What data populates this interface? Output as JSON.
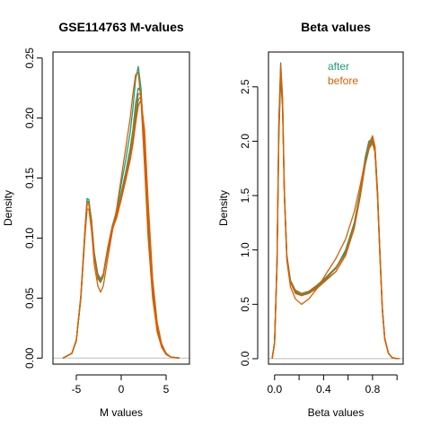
{
  "colors": {
    "after": "#1b9e77",
    "before": "#d95f02",
    "axis": "#000000",
    "baseline": "#bebebe"
  },
  "chart_data": [
    {
      "type": "line",
      "title": "GSE114763 M-values",
      "xlabel": "M values",
      "ylabel": "Density",
      "xlim": [
        -7.6,
        7.6
      ],
      "ylim": [
        -0.005,
        0.255
      ],
      "xticks": [
        -5,
        0,
        5
      ],
      "xtick_labels": [
        "-5",
        "0",
        "5"
      ],
      "yticks": [
        0.0,
        0.05,
        0.1,
        0.15,
        0.2,
        0.25
      ],
      "ytick_labels": [
        "0.00",
        "0.05",
        "0.10",
        "0.15",
        "0.20",
        "0.25"
      ],
      "grid": false,
      "legend": null,
      "series": [
        {
          "group": "after",
          "x": [
            -6.5,
            -5.5,
            -5.0,
            -4.5,
            -4.0,
            -3.8,
            -3.6,
            -3.3,
            -3.0,
            -2.6,
            -2.3,
            -2.0,
            -1.5,
            -1.0,
            -0.5,
            0.0,
            0.5,
            1.0,
            1.3,
            1.6,
            1.9,
            2.2,
            2.6,
            3.0,
            3.5,
            4.0,
            4.5,
            5.0,
            5.5,
            6.5
          ],
          "y": [
            0.0,
            0.004,
            0.015,
            0.05,
            0.11,
            0.13,
            0.13,
            0.115,
            0.088,
            0.07,
            0.066,
            0.07,
            0.092,
            0.11,
            0.123,
            0.145,
            0.165,
            0.188,
            0.208,
            0.232,
            0.243,
            0.225,
            0.17,
            0.11,
            0.055,
            0.025,
            0.01,
            0.004,
            0.001,
            0.0
          ]
        },
        {
          "group": "after",
          "x": [
            -6.5,
            -5.5,
            -5.0,
            -4.5,
            -4.0,
            -3.8,
            -3.6,
            -3.3,
            -3.0,
            -2.6,
            -2.3,
            -2.0,
            -1.5,
            -1.0,
            -0.5,
            0.0,
            0.5,
            1.0,
            1.3,
            1.6,
            1.9,
            2.2,
            2.6,
            3.0,
            3.5,
            4.0,
            4.5,
            5.0,
            5.5,
            6.5
          ],
          "y": [
            0.0,
            0.004,
            0.015,
            0.052,
            0.112,
            0.133,
            0.132,
            0.113,
            0.085,
            0.066,
            0.063,
            0.068,
            0.09,
            0.108,
            0.12,
            0.138,
            0.155,
            0.175,
            0.19,
            0.212,
            0.225,
            0.222,
            0.178,
            0.118,
            0.06,
            0.027,
            0.011,
            0.004,
            0.001,
            0.0
          ]
        },
        {
          "group": "after",
          "x": [
            -6.5,
            -5.5,
            -5.0,
            -4.5,
            -4.0,
            -3.8,
            -3.6,
            -3.3,
            -3.0,
            -2.6,
            -2.3,
            -2.0,
            -1.5,
            -1.0,
            -0.5,
            0.0,
            0.5,
            1.0,
            1.3,
            1.6,
            1.9,
            2.2,
            2.6,
            3.0,
            3.5,
            4.0,
            4.5,
            5.0,
            5.5,
            6.5
          ],
          "y": [
            0.0,
            0.004,
            0.014,
            0.05,
            0.11,
            0.131,
            0.13,
            0.112,
            0.086,
            0.068,
            0.065,
            0.069,
            0.089,
            0.107,
            0.118,
            0.134,
            0.15,
            0.168,
            0.182,
            0.2,
            0.215,
            0.218,
            0.185,
            0.125,
            0.063,
            0.028,
            0.011,
            0.004,
            0.001,
            0.0
          ]
        },
        {
          "group": "before",
          "x": [
            -6.5,
            -5.5,
            -5.0,
            -4.5,
            -4.0,
            -3.8,
            -3.6,
            -3.3,
            -3.0,
            -2.6,
            -2.3,
            -2.0,
            -1.5,
            -1.0,
            -0.5,
            0.0,
            0.5,
            1.0,
            1.3,
            1.6,
            1.9,
            2.2,
            2.6,
            3.0,
            3.5,
            4.0,
            4.5,
            5.0,
            5.5,
            6.5
          ],
          "y": [
            0.0,
            0.004,
            0.015,
            0.05,
            0.108,
            0.128,
            0.128,
            0.112,
            0.086,
            0.066,
            0.064,
            0.07,
            0.092,
            0.11,
            0.12,
            0.135,
            0.152,
            0.17,
            0.186,
            0.205,
            0.22,
            0.22,
            0.18,
            0.12,
            0.06,
            0.027,
            0.011,
            0.004,
            0.001,
            0.0
          ]
        },
        {
          "group": "before",
          "x": [
            -6.5,
            -5.5,
            -5.0,
            -4.5,
            -4.0,
            -3.8,
            -3.6,
            -3.3,
            -3.0,
            -2.6,
            -2.3,
            -2.0,
            -1.5,
            -1.0,
            -0.5,
            0.0,
            0.5,
            1.0,
            1.3,
            1.6,
            1.9,
            2.2,
            2.6,
            3.0,
            3.5,
            4.0,
            4.5,
            5.0,
            5.5,
            6.5
          ],
          "y": [
            0.0,
            0.004,
            0.015,
            0.05,
            0.105,
            0.124,
            0.124,
            0.106,
            0.078,
            0.06,
            0.055,
            0.06,
            0.083,
            0.105,
            0.125,
            0.15,
            0.175,
            0.2,
            0.22,
            0.236,
            0.238,
            0.215,
            0.16,
            0.1,
            0.05,
            0.022,
            0.009,
            0.003,
            0.001,
            0.0
          ]
        },
        {
          "group": "before",
          "x": [
            -6.5,
            -5.5,
            -5.0,
            -4.5,
            -4.0,
            -3.8,
            -3.6,
            -3.3,
            -3.0,
            -2.6,
            -2.3,
            -2.0,
            -1.5,
            -1.0,
            -0.5,
            0.0,
            0.5,
            1.0,
            1.3,
            1.6,
            1.9,
            2.2,
            2.6,
            3.0,
            3.5,
            4.0,
            4.5,
            5.0,
            5.5,
            6.5
          ],
          "y": [
            0.0,
            0.004,
            0.015,
            0.051,
            0.11,
            0.13,
            0.129,
            0.111,
            0.085,
            0.067,
            0.064,
            0.069,
            0.09,
            0.107,
            0.117,
            0.132,
            0.148,
            0.165,
            0.178,
            0.195,
            0.21,
            0.215,
            0.19,
            0.13,
            0.066,
            0.03,
            0.012,
            0.004,
            0.001,
            0.0
          ]
        }
      ]
    },
    {
      "type": "line",
      "title": "Beta values",
      "xlabel": "Beta values",
      "ylabel": "Density",
      "xlim": [
        -0.05,
        1.05
      ],
      "ylim": [
        -0.05,
        2.82
      ],
      "xticks": [
        0.0,
        0.4,
        0.8
      ],
      "xtick_labels": [
        "0.0",
        "0.4",
        "0.8"
      ],
      "xticks_minor": [
        0.2,
        0.6,
        1.0
      ],
      "yticks": [
        0.0,
        0.5,
        1.0,
        1.5,
        2.0,
        2.5
      ],
      "ytick_labels": [
        "0.0",
        "0.5",
        "1.0",
        "1.5",
        "2.0",
        "2.5"
      ],
      "grid": false,
      "legend": {
        "position": "top-right",
        "entries": [
          {
            "label": "after",
            "group": "after"
          },
          {
            "label": "before",
            "group": "before"
          }
        ]
      },
      "series": [
        {
          "group": "after",
          "x": [
            -0.02,
            0.0,
            0.02,
            0.035,
            0.05,
            0.065,
            0.08,
            0.1,
            0.13,
            0.17,
            0.22,
            0.28,
            0.35,
            0.42,
            0.5,
            0.58,
            0.65,
            0.7,
            0.74,
            0.77,
            0.8,
            0.82,
            0.84,
            0.86,
            0.88,
            0.9,
            0.93,
            0.96,
            1.0,
            1.02
          ],
          "y": [
            0.0,
            0.15,
            0.9,
            2.2,
            2.72,
            2.4,
            1.55,
            0.95,
            0.72,
            0.63,
            0.6,
            0.62,
            0.67,
            0.73,
            0.8,
            0.95,
            1.2,
            1.5,
            1.8,
            1.95,
            2.0,
            1.9,
            1.5,
            0.95,
            0.45,
            0.18,
            0.05,
            0.01,
            0.0,
            0.0
          ]
        },
        {
          "group": "after",
          "x": [
            -0.02,
            0.0,
            0.02,
            0.035,
            0.05,
            0.065,
            0.08,
            0.1,
            0.13,
            0.17,
            0.22,
            0.28,
            0.35,
            0.42,
            0.5,
            0.58,
            0.65,
            0.7,
            0.74,
            0.77,
            0.8,
            0.82,
            0.84,
            0.86,
            0.88,
            0.9,
            0.93,
            0.96,
            1.0,
            1.02
          ],
          "y": [
            0.0,
            0.14,
            0.85,
            2.05,
            2.58,
            2.3,
            1.5,
            0.92,
            0.7,
            0.61,
            0.58,
            0.61,
            0.66,
            0.74,
            0.83,
            1.0,
            1.25,
            1.55,
            1.85,
            2.0,
            2.02,
            1.92,
            1.5,
            0.95,
            0.45,
            0.18,
            0.05,
            0.01,
            0.0,
            0.0
          ]
        },
        {
          "group": "after",
          "x": [
            -0.02,
            0.0,
            0.02,
            0.035,
            0.05,
            0.065,
            0.08,
            0.1,
            0.13,
            0.17,
            0.22,
            0.28,
            0.35,
            0.42,
            0.5,
            0.58,
            0.65,
            0.7,
            0.74,
            0.77,
            0.8,
            0.82,
            0.84,
            0.86,
            0.88,
            0.9,
            0.93,
            0.96,
            1.0,
            1.02
          ],
          "y": [
            0.0,
            0.15,
            0.88,
            2.12,
            2.65,
            2.36,
            1.52,
            0.94,
            0.71,
            0.62,
            0.59,
            0.62,
            0.68,
            0.75,
            0.84,
            0.98,
            1.22,
            1.5,
            1.78,
            1.92,
            2.04,
            1.95,
            1.55,
            0.98,
            0.47,
            0.19,
            0.05,
            0.01,
            0.0,
            0.0
          ]
        },
        {
          "group": "before",
          "x": [
            -0.02,
            0.0,
            0.02,
            0.035,
            0.05,
            0.065,
            0.08,
            0.1,
            0.13,
            0.17,
            0.22,
            0.28,
            0.35,
            0.42,
            0.5,
            0.58,
            0.65,
            0.7,
            0.74,
            0.77,
            0.8,
            0.82,
            0.84,
            0.86,
            0.88,
            0.9,
            0.93,
            0.96,
            1.0,
            1.02
          ],
          "y": [
            0.0,
            0.15,
            0.9,
            2.18,
            2.7,
            2.38,
            1.5,
            0.9,
            0.66,
            0.55,
            0.5,
            0.55,
            0.65,
            0.78,
            0.92,
            1.1,
            1.35,
            1.6,
            1.82,
            1.93,
            1.98,
            1.9,
            1.5,
            0.95,
            0.45,
            0.18,
            0.05,
            0.01,
            0.0,
            0.0
          ]
        },
        {
          "group": "before",
          "x": [
            -0.02,
            0.0,
            0.02,
            0.035,
            0.05,
            0.065,
            0.08,
            0.1,
            0.13,
            0.17,
            0.22,
            0.28,
            0.35,
            0.42,
            0.5,
            0.58,
            0.65,
            0.7,
            0.74,
            0.77,
            0.8,
            0.82,
            0.84,
            0.86,
            0.88,
            0.9,
            0.93,
            0.96,
            1.0,
            1.02
          ],
          "y": [
            0.0,
            0.14,
            0.86,
            2.1,
            2.62,
            2.32,
            1.52,
            0.93,
            0.7,
            0.6,
            0.58,
            0.6,
            0.65,
            0.72,
            0.8,
            0.95,
            1.2,
            1.5,
            1.8,
            1.97,
            2.05,
            1.95,
            1.55,
            0.98,
            0.47,
            0.19,
            0.05,
            0.01,
            0.0,
            0.0
          ]
        },
        {
          "group": "before",
          "x": [
            -0.02,
            0.0,
            0.02,
            0.035,
            0.05,
            0.065,
            0.08,
            0.1,
            0.13,
            0.17,
            0.22,
            0.28,
            0.35,
            0.42,
            0.5,
            0.58,
            0.65,
            0.7,
            0.74,
            0.77,
            0.8,
            0.82,
            0.84,
            0.86,
            0.88,
            0.9,
            0.93,
            0.96,
            1.0,
            1.02
          ],
          "y": [
            0.0,
            0.15,
            0.87,
            2.14,
            2.66,
            2.34,
            1.51,
            0.93,
            0.71,
            0.62,
            0.6,
            0.62,
            0.67,
            0.74,
            0.83,
            0.97,
            1.22,
            1.52,
            1.8,
            1.96,
            2.03,
            1.94,
            1.53,
            0.97,
            0.46,
            0.18,
            0.05,
            0.01,
            0.0,
            0.0
          ]
        }
      ]
    }
  ]
}
